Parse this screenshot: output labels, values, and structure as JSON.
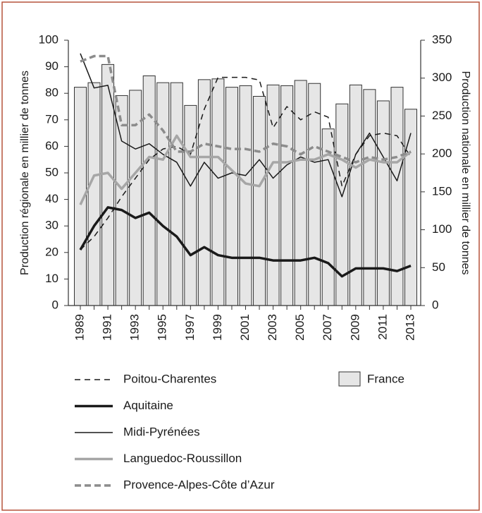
{
  "chart_data": {
    "type": "combo",
    "categories": [
      "1989",
      null,
      "1991",
      null,
      "1993",
      null,
      "1995",
      null,
      "1997",
      null,
      "1999",
      null,
      "2001",
      null,
      "2003",
      null,
      "2005",
      null,
      "2007",
      null,
      "2009",
      null,
      "2011",
      null,
      "2013"
    ],
    "ylabel": "Production régionale en millier de tonnes",
    "y2label": "Production nationale en millier de tonnes",
    "ylim": [
      0,
      100
    ],
    "yticks": [
      0,
      10,
      20,
      30,
      40,
      50,
      60,
      70,
      80,
      90,
      100
    ],
    "y2lim": [
      0,
      350
    ],
    "y2ticks": [
      0,
      50,
      100,
      150,
      200,
      250,
      300,
      350
    ],
    "series": [
      {
        "name": "Poitou-Charentes",
        "kind": "line",
        "color": "#1a1a1a",
        "width": 1.5,
        "dash": "8 6",
        "values": [
          21,
          26,
          33,
          41,
          48,
          55,
          59,
          60,
          57,
          74,
          86,
          86,
          86,
          85,
          67,
          75,
          70,
          73,
          71,
          45,
          57,
          64,
          65,
          64,
          56
        ]
      },
      {
        "name": "Aquitaine",
        "kind": "line",
        "color": "#1a1a1a",
        "width": 3.5,
        "dash": null,
        "values": [
          21,
          30,
          37,
          36,
          33,
          35,
          30,
          26,
          19,
          22,
          19,
          18,
          18,
          18,
          17,
          17,
          17,
          18,
          16,
          11,
          14,
          14,
          14,
          13,
          15
        ]
      },
      {
        "name": "Midi-Pyrénées",
        "kind": "line",
        "color": "#1a1a1a",
        "width": 1.5,
        "dash": null,
        "values": [
          95,
          82,
          83,
          62,
          59,
          61,
          57,
          54,
          45,
          54,
          48,
          50,
          49,
          55,
          48,
          53,
          56,
          54,
          55,
          41,
          57,
          65,
          56,
          47,
          65
        ]
      },
      {
        "name": "Languedoc-Roussillon",
        "kind": "line",
        "color": "#a6a6a6",
        "width": 3.5,
        "dash": null,
        "values": [
          38,
          49,
          50,
          44,
          50,
          56,
          55,
          64,
          56,
          56,
          56,
          51,
          46,
          45,
          54,
          54,
          55,
          55,
          57,
          55,
          52,
          55,
          54,
          54,
          58
        ]
      },
      {
        "name": "Provence-Alpes-Côte d’Azur",
        "kind": "line",
        "color": "#8c8c8c",
        "width": 3.5,
        "dash": "9 5",
        "values": [
          92,
          94,
          94,
          68,
          68,
          72,
          66,
          58,
          58,
          61,
          60,
          59,
          59,
          58,
          61,
          60,
          57,
          60,
          58,
          56,
          54,
          56,
          55,
          56,
          58
        ]
      },
      {
        "name": "France",
        "kind": "bar",
        "axis": "y2",
        "color": "#e6e6e6",
        "values": [
          288,
          294,
          318,
          277,
          284,
          303,
          294,
          294,
          264,
          298,
          299,
          288,
          290,
          276,
          291,
          290,
          297,
          293,
          233,
          266,
          291,
          285,
          270,
          288,
          259
        ]
      }
    ]
  }
}
